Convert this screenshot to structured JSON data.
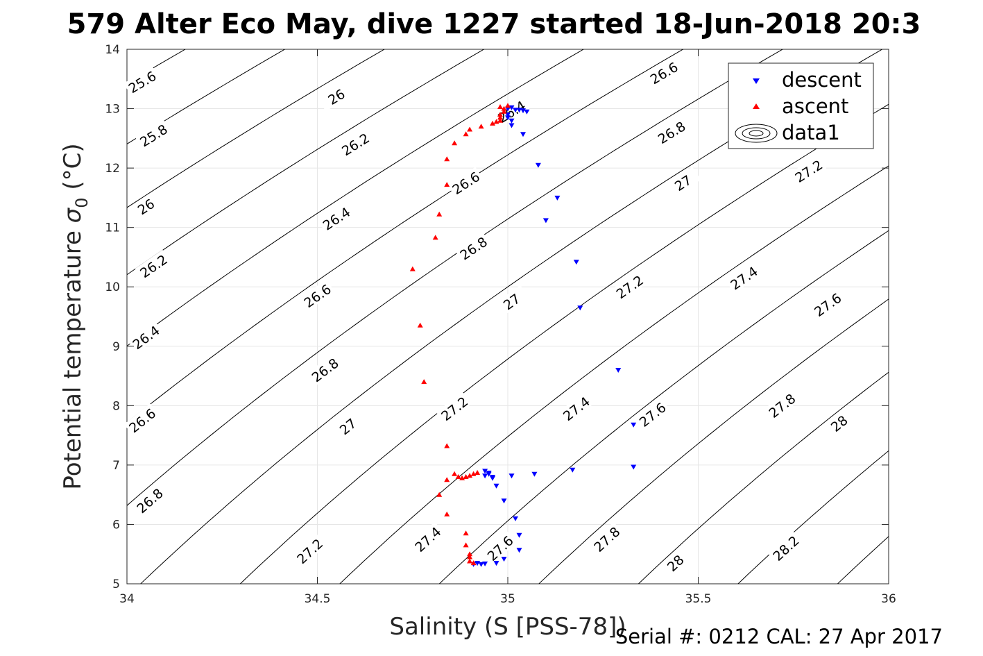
{
  "chart_data": {
    "type": "scatter",
    "title": "579 Alter Eco May, dive 1227 started 18-Jun-2018 20:3",
    "xlabel": "Salinity (S [PSS-78])",
    "ylabel_main": "Potential temperature ",
    "ylabel_sym": "σ",
    "ylabel_sub": "0",
    "ylabel_unit": " (°C)",
    "xlim": [
      34,
      36
    ],
    "ylim": [
      5,
      14
    ],
    "xticks": [
      34,
      34.5,
      35,
      35.5,
      36
    ],
    "xtick_labels": [
      "34",
      "34.5",
      "35",
      "35.5",
      "36"
    ],
    "yticks": [
      5,
      6,
      7,
      8,
      9,
      10,
      11,
      12,
      13,
      14
    ],
    "ytick_labels": [
      "5",
      "6",
      "7",
      "8",
      "9",
      "10",
      "11",
      "12",
      "13",
      "14"
    ],
    "grid": true,
    "legend_position": "top-right",
    "legend": [
      "descent",
      "ascent",
      "data1"
    ],
    "footer": "Serial #: 0212  CAL: 27 Apr 2017",
    "contours": {
      "levels": [
        25.6,
        25.8,
        26,
        26.2,
        26.4,
        26.6,
        26.8,
        27,
        27.2,
        27.4,
        27.6,
        27.8,
        28,
        28.2
      ],
      "label_positions": [
        {
          "level": "25.6",
          "x": 34.04,
          "y": 13.45
        },
        {
          "level": "25.8",
          "x": 34.07,
          "y": 12.55
        },
        {
          "level": "26",
          "x": 34.05,
          "y": 11.35
        },
        {
          "level": "26.2",
          "x": 34.07,
          "y": 10.35
        },
        {
          "level": "26.4",
          "x": 34.05,
          "y": 9.15
        },
        {
          "level": "26.6",
          "x": 34.04,
          "y": 7.75
        },
        {
          "level": "26.8",
          "x": 34.06,
          "y": 6.4
        },
        {
          "level": "26",
          "x": 34.55,
          "y": 13.2
        },
        {
          "level": "26.2",
          "x": 34.6,
          "y": 12.4
        },
        {
          "level": "26.4",
          "x": 34.55,
          "y": 11.15
        },
        {
          "level": "26.6",
          "x": 34.5,
          "y": 9.85
        },
        {
          "level": "26.8",
          "x": 34.52,
          "y": 8.6
        },
        {
          "level": "27",
          "x": 34.58,
          "y": 7.65
        },
        {
          "level": "27.2",
          "x": 34.48,
          "y": 5.55
        },
        {
          "level": "27.2",
          "x": 34.86,
          "y": 7.95
        },
        {
          "level": "27.4",
          "x": 34.79,
          "y": 5.75
        },
        {
          "level": "26.4",
          "x": 35.01,
          "y": 12.95
        },
        {
          "level": "26.6",
          "x": 34.89,
          "y": 11.75
        },
        {
          "level": "26.8",
          "x": 34.91,
          "y": 10.65
        },
        {
          "level": "27",
          "x": 35.01,
          "y": 9.75
        },
        {
          "level": "27.6",
          "x": 34.98,
          "y": 5.6
        },
        {
          "level": "27.4",
          "x": 35.18,
          "y": 7.95
        },
        {
          "level": "27.8",
          "x": 35.26,
          "y": 5.75
        },
        {
          "level": "26.6",
          "x": 35.41,
          "y": 13.6
        },
        {
          "level": "26.8",
          "x": 35.43,
          "y": 12.6
        },
        {
          "level": "27",
          "x": 35.46,
          "y": 11.75
        },
        {
          "level": "27.2",
          "x": 35.32,
          "y": 10.0
        },
        {
          "level": "27.6",
          "x": 35.38,
          "y": 7.85
        },
        {
          "level": "28",
          "x": 35.44,
          "y": 5.35
        },
        {
          "level": "27.2",
          "x": 35.79,
          "y": 11.95
        },
        {
          "level": "27.4",
          "x": 35.62,
          "y": 10.15
        },
        {
          "level": "27.6",
          "x": 35.84,
          "y": 9.7
        },
        {
          "level": "27.8",
          "x": 35.72,
          "y": 8.0
        },
        {
          "level": "28",
          "x": 35.87,
          "y": 7.7
        },
        {
          "level": "28.2",
          "x": 35.73,
          "y": 5.6
        }
      ]
    },
    "series": [
      {
        "name": "descent",
        "marker": "triangle-down",
        "color": "#0000ff",
        "points": [
          [
            35.0,
            13.0
          ],
          [
            35.01,
            13.02
          ],
          [
            35.02,
            12.98
          ],
          [
            35.03,
            12.98
          ],
          [
            35.04,
            12.97
          ],
          [
            35.05,
            12.95
          ],
          [
            35.0,
            12.9
          ],
          [
            35.0,
            12.85
          ],
          [
            35.01,
            12.8
          ],
          [
            35.01,
            12.72
          ],
          [
            35.04,
            12.57
          ],
          [
            35.08,
            12.05
          ],
          [
            35.13,
            11.5
          ],
          [
            35.1,
            11.12
          ],
          [
            35.18,
            10.42
          ],
          [
            35.19,
            9.65
          ],
          [
            35.29,
            8.6
          ],
          [
            35.33,
            7.68
          ],
          [
            35.33,
            6.97
          ],
          [
            35.17,
            6.92
          ],
          [
            35.07,
            6.85
          ],
          [
            35.01,
            6.82
          ],
          [
            34.96,
            6.8
          ],
          [
            34.94,
            6.9
          ],
          [
            34.95,
            6.85
          ],
          [
            34.96,
            6.78
          ],
          [
            34.97,
            6.65
          ],
          [
            34.99,
            6.4
          ],
          [
            35.02,
            6.1
          ],
          [
            35.03,
            5.82
          ],
          [
            35.03,
            5.57
          ],
          [
            34.99,
            5.42
          ],
          [
            34.97,
            5.35
          ],
          [
            34.94,
            5.34
          ],
          [
            34.93,
            5.33
          ],
          [
            34.92,
            5.35
          ],
          [
            34.91,
            5.33
          ],
          [
            34.95,
            6.87
          ],
          [
            34.94,
            6.82
          ]
        ]
      },
      {
        "name": "ascent",
        "marker": "triangle-up",
        "color": "#ff0000",
        "points": [
          [
            34.91,
            5.35
          ],
          [
            34.9,
            5.38
          ],
          [
            34.9,
            5.45
          ],
          [
            34.9,
            5.5
          ],
          [
            34.89,
            5.65
          ],
          [
            34.89,
            5.85
          ],
          [
            34.84,
            6.17
          ],
          [
            34.82,
            6.5
          ],
          [
            34.84,
            6.75
          ],
          [
            34.86,
            6.85
          ],
          [
            34.87,
            6.8
          ],
          [
            34.88,
            6.78
          ],
          [
            34.89,
            6.8
          ],
          [
            34.9,
            6.82
          ],
          [
            34.91,
            6.85
          ],
          [
            34.92,
            6.87
          ],
          [
            34.84,
            7.32
          ],
          [
            34.78,
            8.4
          ],
          [
            34.77,
            9.35
          ],
          [
            34.75,
            10.3
          ],
          [
            34.81,
            10.83
          ],
          [
            34.82,
            11.22
          ],
          [
            34.84,
            11.72
          ],
          [
            34.84,
            12.15
          ],
          [
            34.86,
            12.42
          ],
          [
            34.89,
            12.57
          ],
          [
            34.9,
            12.65
          ],
          [
            34.93,
            12.7
          ],
          [
            34.96,
            12.75
          ],
          [
            34.97,
            12.78
          ],
          [
            34.98,
            12.8
          ],
          [
            34.98,
            12.85
          ],
          [
            34.98,
            12.9
          ],
          [
            34.99,
            12.95
          ],
          [
            34.99,
            13.0
          ],
          [
            34.98,
            13.03
          ],
          [
            35.0,
            13.05
          ]
        ]
      }
    ]
  }
}
